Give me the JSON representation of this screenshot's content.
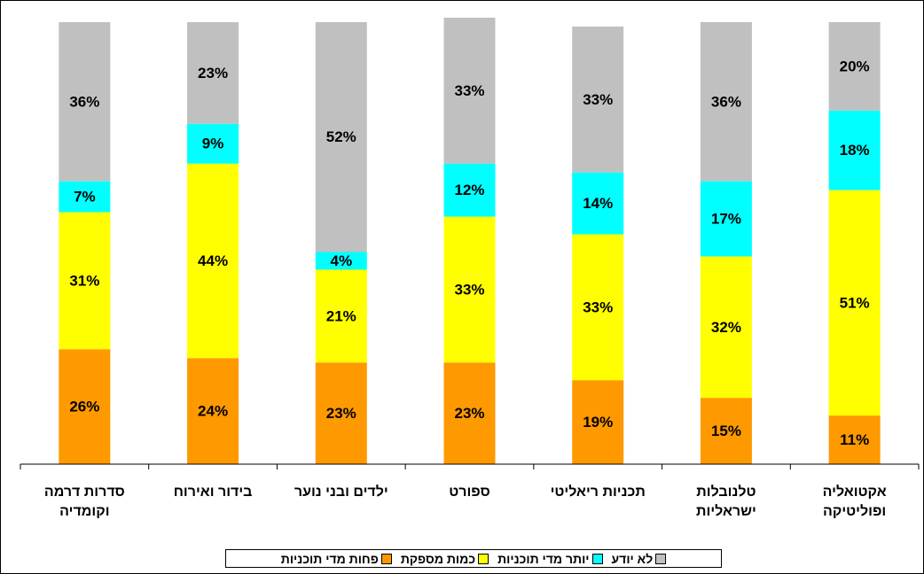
{
  "chart_data": {
    "type": "bar",
    "stacked": true,
    "direction": "rtl",
    "categories": [
      [
        "אקטואליה",
        "ופוליטיקה"
      ],
      [
        "טלנובלות",
        "ישראליות"
      ],
      [
        "תכניות ריאליטי"
      ],
      [
        "ספורט"
      ],
      [
        "ילדים ובני נוער"
      ],
      [
        "בידור ואירוח"
      ],
      [
        "סדרות דרמה",
        "וקומדיה"
      ]
    ],
    "series": [
      {
        "name": "פחות מדי תוכניות",
        "color": "#FF9900",
        "values": [
          11,
          15,
          19,
          23,
          23,
          24,
          26
        ]
      },
      {
        "name": "כמות מספקת",
        "color": "#FFFF00",
        "values": [
          51,
          32,
          33,
          33,
          21,
          44,
          31
        ]
      },
      {
        "name": "יותר מדי תוכניות",
        "color": "#00FFFF",
        "values": [
          18,
          17,
          14,
          12,
          4,
          9,
          7
        ]
      },
      {
        "name": "לא יודע",
        "color": "#C0C0C0",
        "values": [
          20,
          36,
          33,
          33,
          52,
          23,
          36
        ]
      }
    ],
    "value_suffix": "%",
    "ylim": [
      0,
      100
    ],
    "grid": false,
    "legend_position": "bottom"
  }
}
